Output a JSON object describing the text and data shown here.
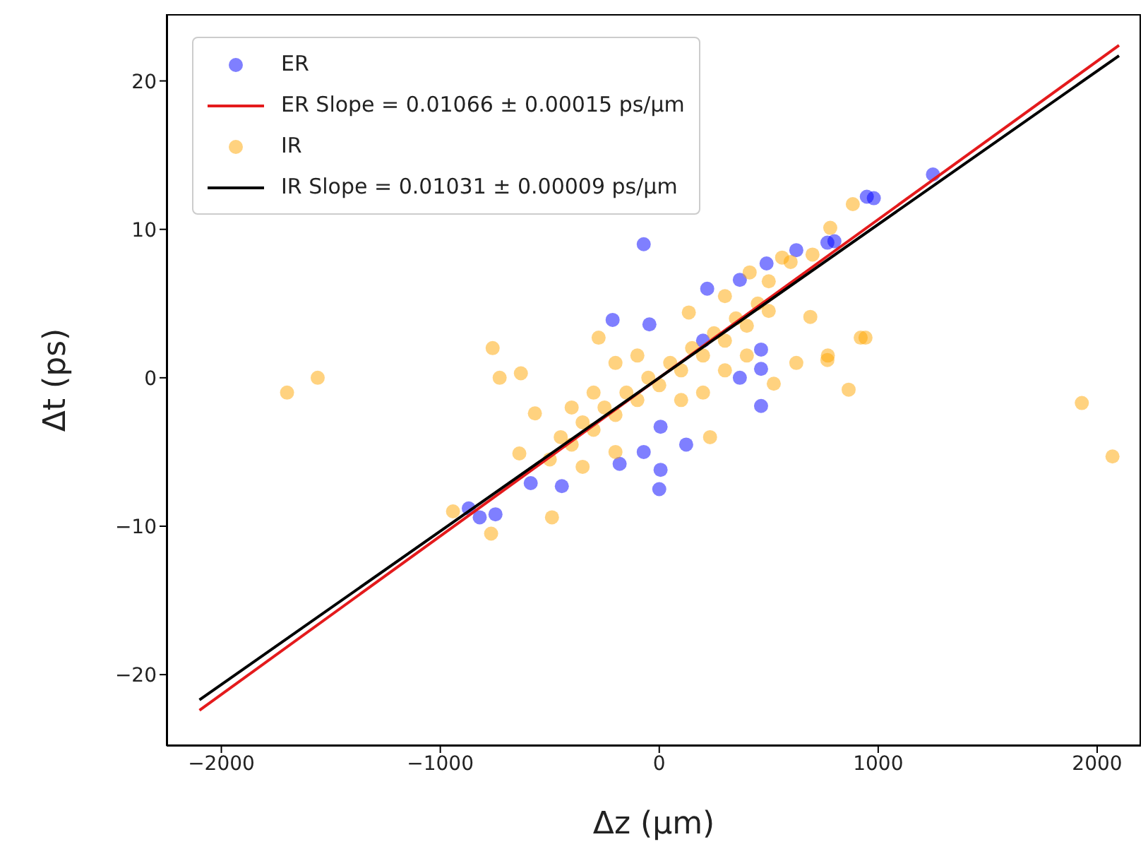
{
  "chart_data": {
    "type": "scatter",
    "xlabel": "Δz (μm)",
    "ylabel": "Δt (ps)",
    "xlim": [
      -2250,
      2200
    ],
    "ylim": [
      -24.8,
      24.5
    ],
    "xticks": [
      {
        "value": -2000,
        "label": "−2000"
      },
      {
        "value": -1000,
        "label": "−1000"
      },
      0,
      1000,
      2000
    ],
    "yticks": [
      {
        "value": -20,
        "label": "−20"
      },
      {
        "value": -10,
        "label": "−10"
      },
      0,
      10,
      20
    ],
    "grid": false,
    "legend": "top left",
    "series": [
      {
        "name": "ER",
        "marker": "circle",
        "color": "#0000ff",
        "x": [
          1250,
          980,
          800,
          -71,
          -213,
          219,
          368,
          490,
          626,
          768,
          948,
          -45,
          465,
          465,
          368,
          465,
          6,
          123,
          -71,
          -181,
          6,
          0,
          -445,
          -587,
          -748,
          -870,
          -820,
          200
        ],
        "values": [
          13.7,
          12.1,
          9.2,
          9.0,
          3.9,
          6.0,
          6.6,
          7.7,
          8.6,
          9.1,
          12.2,
          3.6,
          1.9,
          0.6,
          0,
          -1.9,
          -3.3,
          -4.5,
          -5.0,
          -5.8,
          -6.2,
          -7.5,
          -7.3,
          -7.1,
          -9.2,
          -8.8,
          -9.4,
          2.5
        ]
      },
      {
        "name": "ER Slope = 0.01066 ± 0.00015 ps/μm",
        "type": "line",
        "marker": "none",
        "line_style": "solid",
        "color": "#e41a1c",
        "x": [
          -2100,
          2100
        ],
        "values": [
          -22.4,
          22.4
        ]
      },
      {
        "name": "IR",
        "marker": "circle",
        "color": "#ffa500",
        "x": [
          -1700,
          -1560,
          1930,
          2070,
          920,
          770,
          -761,
          -729,
          -632,
          942,
          865,
          768,
          690,
          884,
          781,
          626,
          523,
          232,
          -490,
          -768,
          -942,
          -639,
          -568,
          -277,
          135,
          413,
          561,
          700,
          600,
          -500,
          -450,
          -400,
          -350,
          -300,
          -250,
          -200,
          -150,
          -100,
          -50,
          0,
          50,
          100,
          150,
          200,
          250,
          300,
          350,
          400,
          450,
          500,
          -400,
          -300,
          -200,
          -100,
          100,
          200,
          300,
          400,
          -350,
          -200,
          300,
          500
        ],
        "values": [
          -1.0,
          0,
          -1.7,
          -5.3,
          2.7,
          1.5,
          2.0,
          0,
          0.3,
          2.7,
          -0.8,
          1.2,
          4.1,
          11.7,
          10.1,
          1.0,
          -0.4,
          -4.0,
          -9.4,
          -10.5,
          -9.0,
          -5.1,
          -2.4,
          2.7,
          4.4,
          7.1,
          8.1,
          8.3,
          7.8,
          -5.5,
          -4.0,
          -4.5,
          -3.0,
          -3.5,
          -2.0,
          -2.5,
          -1.0,
          -1.5,
          0,
          -0.5,
          1.0,
          0.5,
          2.0,
          1.5,
          3.0,
          2.5,
          4.0,
          3.5,
          5.0,
          4.5,
          -2.0,
          -1.0,
          1.0,
          1.5,
          -1.5,
          -1.0,
          0.5,
          1.5,
          -6.0,
          -5.0,
          5.5,
          6.5
        ]
      },
      {
        "name": "IR Slope = 0.01031 ± 0.00009 ps/μm",
        "type": "line",
        "marker": "none",
        "line_style": "solid",
        "color": "#000000",
        "x": [
          -2100,
          2100
        ],
        "values": [
          -21.7,
          21.7
        ]
      }
    ]
  }
}
